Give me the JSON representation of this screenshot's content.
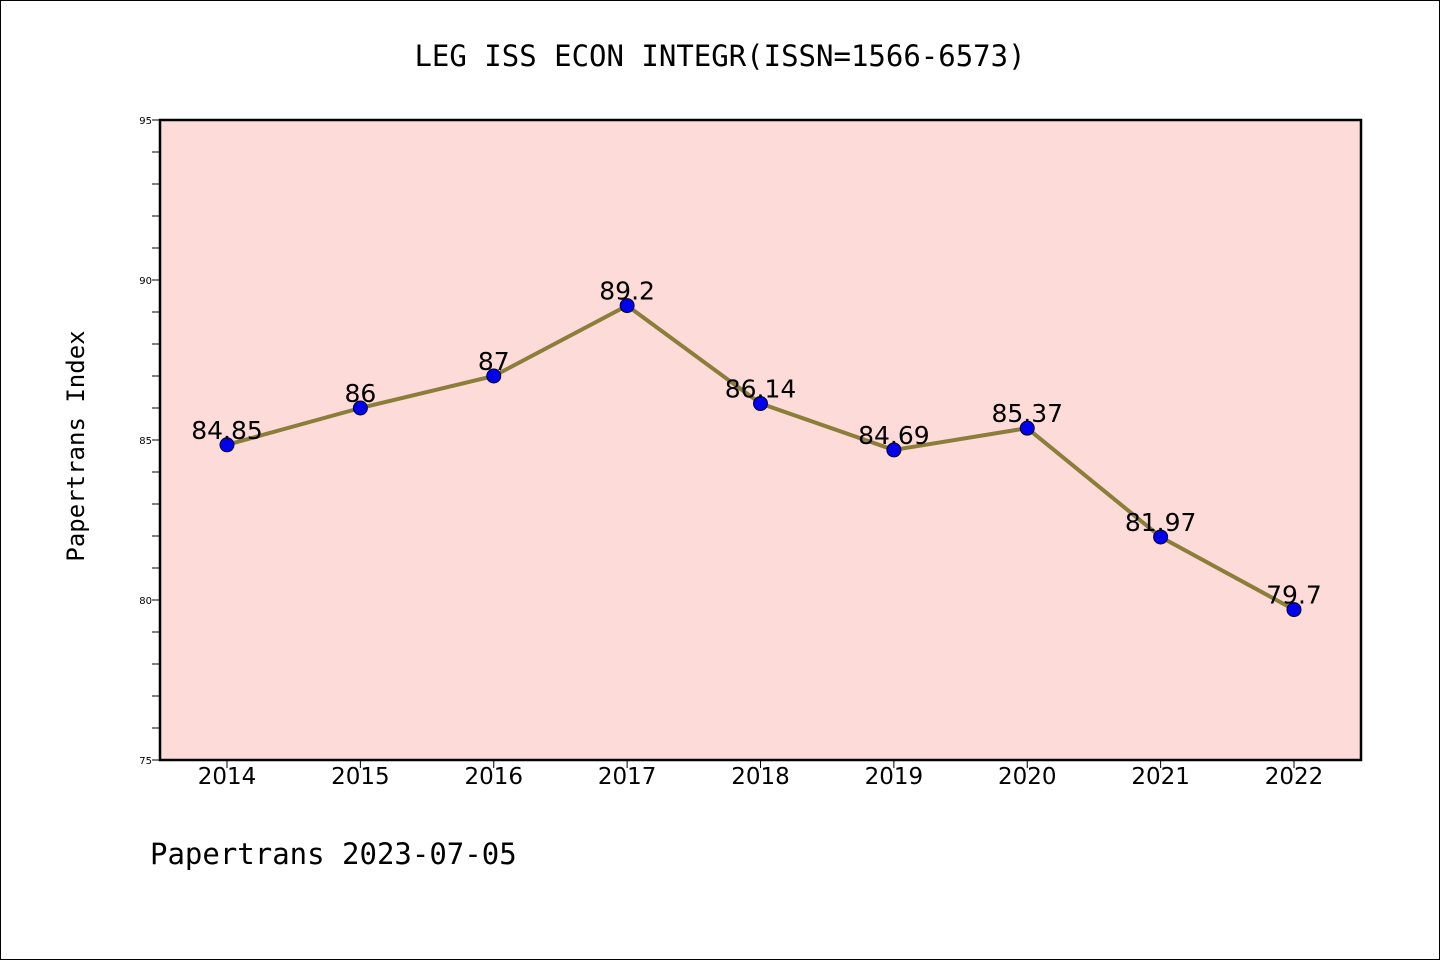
{
  "chart_data": {
    "type": "line",
    "title": "LEG ISS ECON INTEGR(ISSN=1566-6573)",
    "xlabel": "",
    "ylabel": "Papertrans Index",
    "categories": [
      "2014",
      "2015",
      "2016",
      "2017",
      "2018",
      "2019",
      "2020",
      "2021",
      "2022"
    ],
    "series": [
      {
        "values": [
          84.85,
          86,
          87,
          89.2,
          86.14,
          84.69,
          85.37,
          81.97,
          79.7
        ],
        "data_labels": [
          "84.85",
          "86",
          "87",
          "89.2",
          "86.14",
          "84.69",
          "85.37",
          "81.97",
          "79.7"
        ]
      }
    ],
    "ylim": [
      75,
      95
    ],
    "yticks": [
      "75",
      "80",
      "85",
      "90",
      "95"
    ],
    "yminor_step": 1,
    "grid": false,
    "legend": "none",
    "colors": {
      "plot_background": "#fddbd8",
      "line": "#8b7d3a",
      "marker": "#0000ee"
    }
  },
  "footer": {
    "text": "Papertrans 2023-07-05"
  }
}
